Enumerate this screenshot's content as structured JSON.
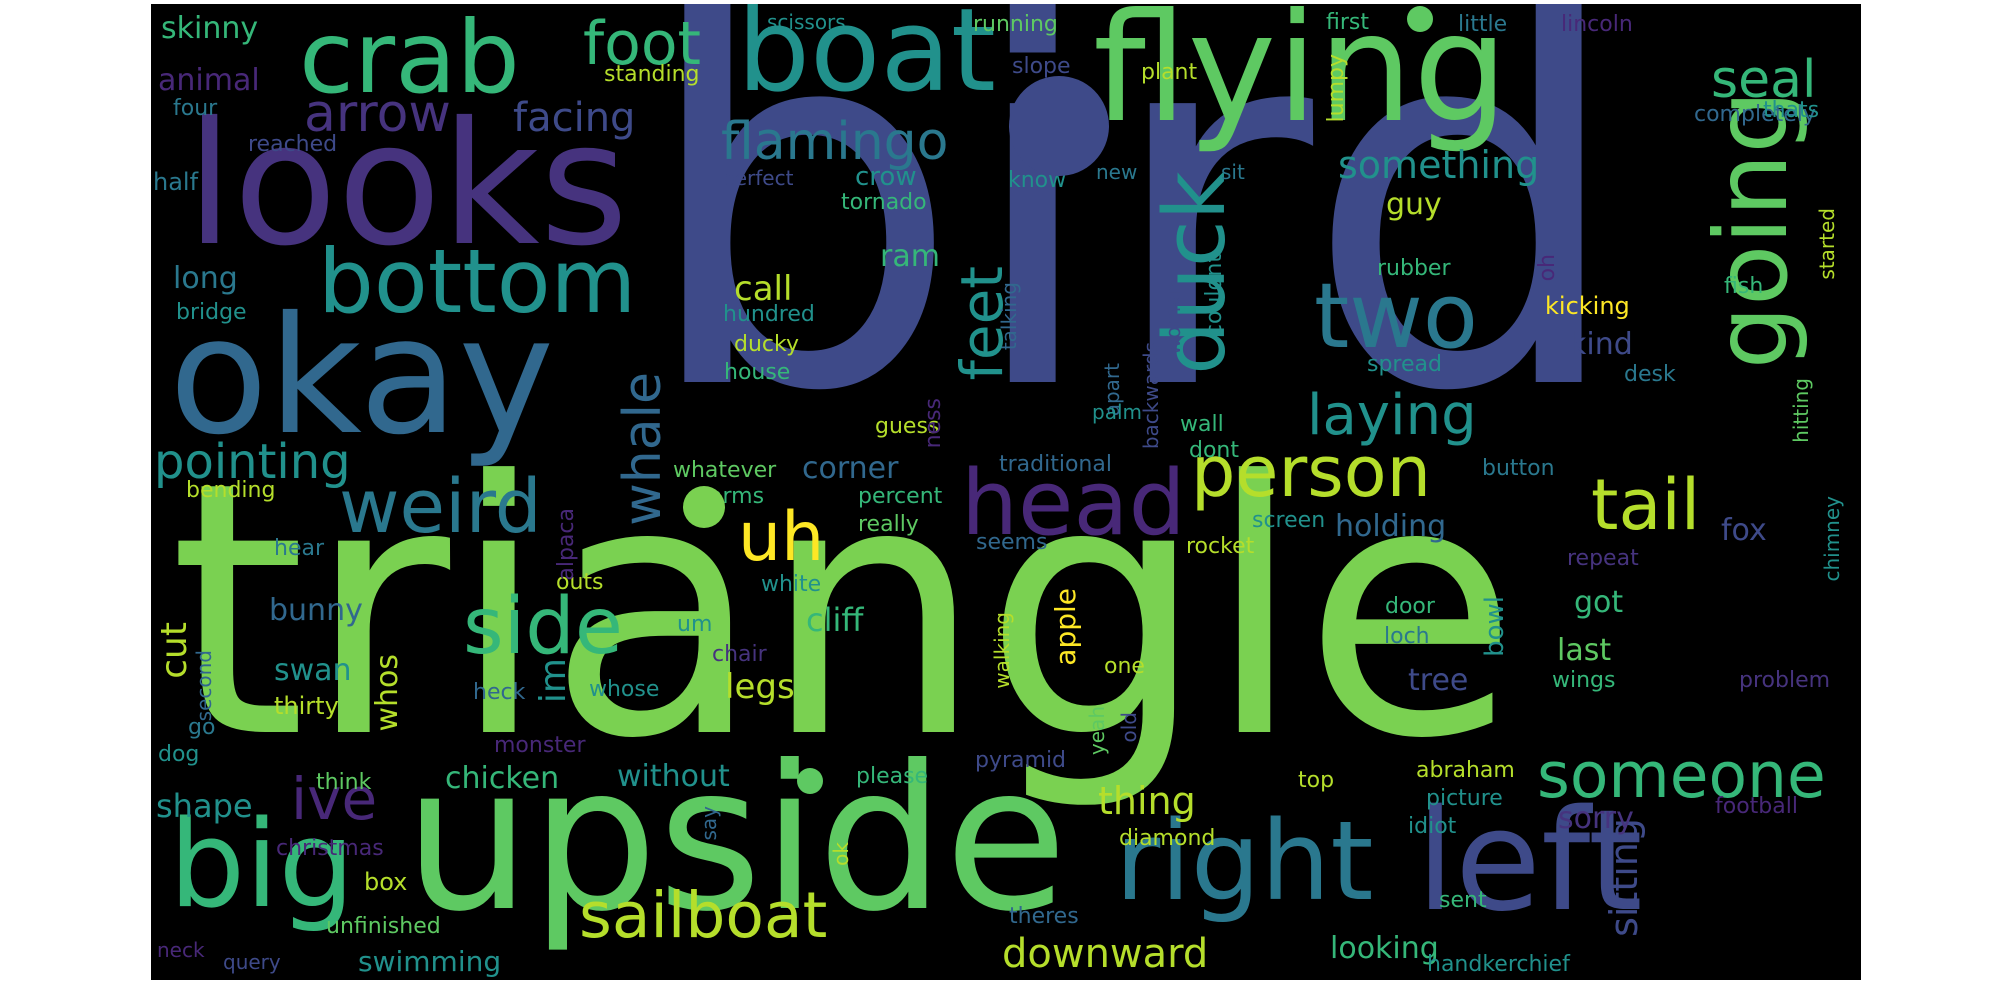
{
  "words": [
    {
      "text": "bird",
      "color": "#3e4a89",
      "vertical": false
    },
    {
      "text": "triangle",
      "color": "#7ad151",
      "vertical": false
    },
    {
      "text": "upside",
      "color": "#5ec962",
      "vertical": false
    },
    {
      "text": "looks",
      "color": "#46337e",
      "vertical": false
    },
    {
      "text": "okay",
      "color": "#31688e",
      "vertical": false
    },
    {
      "text": "flying",
      "color": "#5ec962",
      "vertical": false
    },
    {
      "text": "boat",
      "color": "#21918c",
      "vertical": false
    },
    {
      "text": "crab",
      "color": "#35b779",
      "vertical": false
    },
    {
      "text": "left",
      "color": "#3e4a89",
      "vertical": false
    },
    {
      "text": "right",
      "color": "#2a788e",
      "vertical": false
    },
    {
      "text": "big",
      "color": "#35b779",
      "vertical": false
    },
    {
      "text": "head",
      "color": "#482878",
      "vertical": false
    },
    {
      "text": "going",
      "color": "#5ec962",
      "vertical": true
    },
    {
      "text": "two",
      "color": "#2a788e",
      "vertical": false
    },
    {
      "text": "bottom",
      "color": "#21918c",
      "vertical": false
    },
    {
      "text": "duck",
      "color": "#21918c",
      "vertical": true
    },
    {
      "text": "person",
      "color": "#b5de2b",
      "vertical": false
    },
    {
      "text": "tail",
      "color": "#b5de2b",
      "vertical": false
    },
    {
      "text": "weird",
      "color": "#2a788e",
      "vertical": false
    },
    {
      "text": "side",
      "color": "#35b779",
      "vertical": false
    },
    {
      "text": "uh",
      "color": "#fde725",
      "vertical": false
    },
    {
      "text": "sailboat",
      "color": "#b5de2b",
      "vertical": false
    },
    {
      "text": "someone",
      "color": "#35b779",
      "vertical": false
    },
    {
      "text": "flamingo",
      "color": "#2a788e",
      "vertical": false
    },
    {
      "text": "seal",
      "color": "#35b779",
      "vertical": false
    },
    {
      "text": "foot",
      "color": "#35b779",
      "vertical": false
    },
    {
      "text": "arrow",
      "color": "#46337e",
      "vertical": false
    },
    {
      "text": "feet",
      "color": "#21918c",
      "vertical": true
    },
    {
      "text": "whale",
      "color": "#31688e",
      "vertical": true
    },
    {
      "text": "laying",
      "color": "#21918c",
      "vertical": false
    },
    {
      "text": "pointing",
      "color": "#21918c",
      "vertical": false
    },
    {
      "text": "ive",
      "color": "#482878",
      "vertical": false
    },
    {
      "text": "downward",
      "color": "#b5de2b",
      "vertical": false
    },
    {
      "text": "facing",
      "color": "#3e4a89",
      "vertical": false
    },
    {
      "text": "something",
      "color": "#21918c",
      "vertical": false
    },
    {
      "text": "sitting",
      "color": "#3e4a89",
      "vertical": true
    },
    {
      "text": "skinny",
      "color": "#35b779",
      "vertical": false
    },
    {
      "text": "animal",
      "color": "#482878",
      "vertical": false
    },
    {
      "text": "four",
      "color": "#2a788e",
      "vertical": false
    },
    {
      "text": "half",
      "color": "#2a788e",
      "vertical": false
    },
    {
      "text": "long",
      "color": "#2a788e",
      "vertical": false
    },
    {
      "text": "bridge",
      "color": "#21918c",
      "vertical": false
    },
    {
      "text": "bending",
      "color": "#b5de2b",
      "vertical": false
    },
    {
      "text": "hear",
      "color": "#2a788e",
      "vertical": false
    },
    {
      "text": "bunny",
      "color": "#31688e",
      "vertical": false
    },
    {
      "text": "cut",
      "color": "#b5de2b",
      "vertical": true
    },
    {
      "text": "second",
      "color": "#31688e",
      "vertical": true
    },
    {
      "text": "go",
      "color": "#2a788e",
      "vertical": false
    },
    {
      "text": "dog",
      "color": "#21918c",
      "vertical": false
    },
    {
      "text": "shape",
      "color": "#21918c",
      "vertical": false
    },
    {
      "text": "christmas",
      "color": "#482878",
      "vertical": false
    },
    {
      "text": "box",
      "color": "#b5de2b",
      "vertical": false
    },
    {
      "text": "unfinished",
      "color": "#5ec962",
      "vertical": false
    },
    {
      "text": "neck",
      "color": "#482878",
      "vertical": false
    },
    {
      "text": "query",
      "color": "#3e4a89",
      "vertical": false
    },
    {
      "text": "swimming",
      "color": "#21918c",
      "vertical": false
    },
    {
      "text": "think",
      "color": "#5ec962",
      "vertical": false
    },
    {
      "text": "swan",
      "color": "#21918c",
      "vertical": false
    },
    {
      "text": "thirty",
      "color": "#b5de2b",
      "vertical": false
    },
    {
      "text": "whos",
      "color": "#b5de2b",
      "vertical": true
    },
    {
      "text": "im",
      "color": "#21918c",
      "vertical": true
    },
    {
      "text": "chicken",
      "color": "#35b779",
      "vertical": false
    },
    {
      "text": "without",
      "color": "#21918c",
      "vertical": false
    },
    {
      "text": "scissors",
      "color": "#21918c",
      "vertical": false
    },
    {
      "text": "standing",
      "color": "#b5de2b",
      "vertical": false
    },
    {
      "text": "reached",
      "color": "#3e4a89",
      "vertical": false
    },
    {
      "text": "perfect",
      "color": "#3e4a89",
      "vertical": false
    },
    {
      "text": "crow",
      "color": "#21918c",
      "vertical": false
    },
    {
      "text": "tornado",
      "color": "#35b779",
      "vertical": false
    },
    {
      "text": "ram",
      "color": "#35b779",
      "vertical": false
    },
    {
      "text": "call",
      "color": "#b5de2b",
      "vertical": false
    },
    {
      "text": "hundred",
      "color": "#21918c",
      "vertical": false
    },
    {
      "text": "ducky",
      "color": "#b5de2b",
      "vertical": false
    },
    {
      "text": "house",
      "color": "#35b779",
      "vertical": false
    },
    {
      "text": "guess",
      "color": "#b5de2b",
      "vertical": false
    },
    {
      "text": "whatever",
      "color": "#5ec962",
      "vertical": false
    },
    {
      "text": "corner",
      "color": "#31688e",
      "vertical": false
    },
    {
      "text": "arms",
      "color": "#35b779",
      "vertical": false
    },
    {
      "text": "percent",
      "color": "#35b779",
      "vertical": false
    },
    {
      "text": "really",
      "color": "#5ec962",
      "vertical": false
    },
    {
      "text": "outs",
      "color": "#b5de2b",
      "vertical": false
    },
    {
      "text": "white",
      "color": "#21918c",
      "vertical": false
    },
    {
      "text": "cliff",
      "color": "#35b779",
      "vertical": false
    },
    {
      "text": "um",
      "color": "#21918c",
      "vertical": false
    },
    {
      "text": "chair",
      "color": "#46337e",
      "vertical": false
    },
    {
      "text": "legs",
      "color": "#b5de2b",
      "vertical": false
    },
    {
      "text": "heck",
      "color": "#31688e",
      "vertical": false
    },
    {
      "text": "whose",
      "color": "#21918c",
      "vertical": false
    },
    {
      "text": "monster",
      "color": "#482878",
      "vertical": false
    },
    {
      "text": "please",
      "color": "#35b779",
      "vertical": false
    },
    {
      "text": "thing",
      "color": "#b5de2b",
      "vertical": false
    },
    {
      "text": "running",
      "color": "#5ec962",
      "vertical": false
    },
    {
      "text": "slope",
      "color": "#3e4a89",
      "vertical": false
    },
    {
      "text": "plant",
      "color": "#b5de2b",
      "vertical": false
    },
    {
      "text": "lumpy",
      "color": "#b5de2b",
      "vertical": true
    },
    {
      "text": "first",
      "color": "#35b779",
      "vertical": false
    },
    {
      "text": "little",
      "color": "#2a788e",
      "vertical": false
    },
    {
      "text": "lincoln",
      "color": "#482878",
      "vertical": false
    },
    {
      "text": "completely",
      "color": "#31688e",
      "vertical": false
    },
    {
      "text": "thats",
      "color": "#21918c",
      "vertical": false
    },
    {
      "text": "know",
      "color": "#21918c",
      "vertical": false
    },
    {
      "text": "new",
      "color": "#2a788e",
      "vertical": false
    },
    {
      "text": "sit",
      "color": "#2a788e",
      "vertical": false
    },
    {
      "text": "guy",
      "color": "#b5de2b",
      "vertical": false
    },
    {
      "text": "talking",
      "color": "#31688e",
      "vertical": true
    },
    {
      "text": "apart",
      "color": "#31688e",
      "vertical": true
    },
    {
      "text": "backwards",
      "color": "#3e4a89",
      "vertical": true
    },
    {
      "text": "woman",
      "color": "#3e4a89",
      "vertical": true
    },
    {
      "text": "couldnt",
      "color": "#21918c",
      "vertical": true
    },
    {
      "text": "palm",
      "color": "#21918c",
      "vertical": false
    },
    {
      "text": "ness",
      "color": "#482878",
      "vertical": true
    },
    {
      "text": "alpaca",
      "color": "#482878",
      "vertical": true
    },
    {
      "text": "wall",
      "color": "#35b779",
      "vertical": false
    },
    {
      "text": "dont",
      "color": "#35b779",
      "vertical": false
    },
    {
      "text": "traditional",
      "color": "#31688e",
      "vertical": false
    },
    {
      "text": "button",
      "color": "#2a788e",
      "vertical": false
    },
    {
      "text": "seems",
      "color": "#31688e",
      "vertical": false
    },
    {
      "text": "rocket",
      "color": "#b5de2b",
      "vertical": false
    },
    {
      "text": "screen",
      "color": "#21918c",
      "vertical": false
    },
    {
      "text": "holding",
      "color": "#31688e",
      "vertical": false
    },
    {
      "text": "rubber",
      "color": "#35b779",
      "vertical": false
    },
    {
      "text": "spread",
      "color": "#21918c",
      "vertical": false
    },
    {
      "text": "oh",
      "color": "#482878",
      "vertical": true
    },
    {
      "text": "kicking",
      "color": "#fde725",
      "vertical": false
    },
    {
      "text": "kind",
      "color": "#3e4a89",
      "vertical": false
    },
    {
      "text": "desk",
      "color": "#2a788e",
      "vertical": false
    },
    {
      "text": "fish",
      "color": "#35b779",
      "vertical": false
    },
    {
      "text": "started",
      "color": "#b5de2b",
      "vertical": true
    },
    {
      "text": "hitting",
      "color": "#5ec962",
      "vertical": true
    },
    {
      "text": "chimney",
      "color": "#21918c",
      "vertical": true
    },
    {
      "text": "fox",
      "color": "#3e4a89",
      "vertical": false
    },
    {
      "text": "repeat",
      "color": "#46337e",
      "vertical": false
    },
    {
      "text": "got",
      "color": "#35b779",
      "vertical": false
    },
    {
      "text": "door",
      "color": "#35b779",
      "vertical": false
    },
    {
      "text": "loch",
      "color": "#2a788e",
      "vertical": false
    },
    {
      "text": "bowl",
      "color": "#21918c",
      "vertical": true
    },
    {
      "text": "last",
      "color": "#5ec962",
      "vertical": false
    },
    {
      "text": "tree",
      "color": "#3e4a89",
      "vertical": false
    },
    {
      "text": "wings",
      "color": "#35b779",
      "vertical": false
    },
    {
      "text": "problem",
      "color": "#46337e",
      "vertical": false
    },
    {
      "text": "apple",
      "color": "#fde725",
      "vertical": true
    },
    {
      "text": "walking",
      "color": "#b5de2b",
      "vertical": true
    },
    {
      "text": "one",
      "color": "#b5de2b",
      "vertical": false
    },
    {
      "text": "yeah",
      "color": "#5ec962",
      "vertical": true
    },
    {
      "text": "old",
      "color": "#3e4a89",
      "vertical": true
    },
    {
      "text": "pyramid",
      "color": "#3e4a89",
      "vertical": false
    },
    {
      "text": "top",
      "color": "#b5de2b",
      "vertical": false
    },
    {
      "text": "abraham",
      "color": "#b5de2b",
      "vertical": false
    },
    {
      "text": "picture",
      "color": "#21918c",
      "vertical": false
    },
    {
      "text": "idiot",
      "color": "#21918c",
      "vertical": false
    },
    {
      "text": "sorry",
      "color": "#46337e",
      "vertical": false
    },
    {
      "text": "football",
      "color": "#482878",
      "vertical": false
    },
    {
      "text": "diamond",
      "color": "#b5de2b",
      "vertical": false
    },
    {
      "text": "say",
      "color": "#31688e",
      "vertical": true
    },
    {
      "text": "ok",
      "color": "#b5de2b",
      "vertical": true
    },
    {
      "text": "theres",
      "color": "#31688e",
      "vertical": false
    },
    {
      "text": "sent",
      "color": "#35b779",
      "vertical": false
    },
    {
      "text": "looking",
      "color": "#35b779",
      "vertical": false
    },
    {
      "text": "handkerchief",
      "color": "#21918c",
      "vertical": false
    }
  ]
}
